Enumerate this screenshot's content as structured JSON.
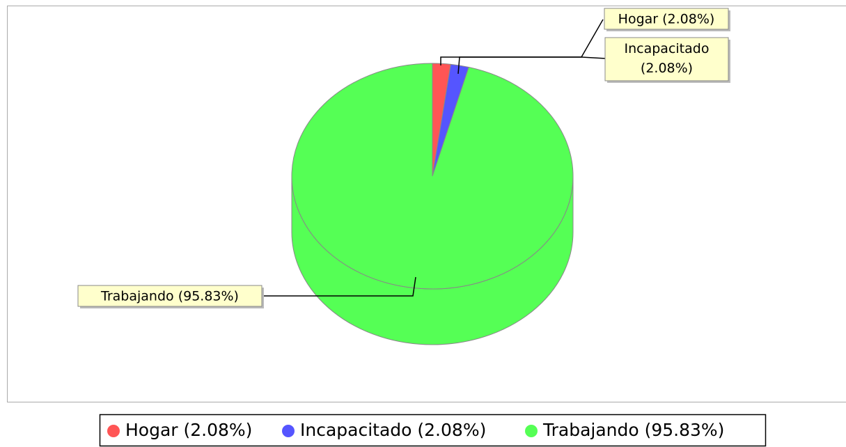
{
  "chart_data": {
    "type": "pie3d",
    "categories": [
      "Hogar (2.08%)",
      "Incapacitado (2.08%)",
      "Trabajando (95.83%)"
    ],
    "values": [
      2.08,
      2.08,
      95.83
    ],
    "colors": [
      "#ff5555",
      "#5555ff",
      "#55ff55"
    ],
    "legend": "bottom"
  }
}
